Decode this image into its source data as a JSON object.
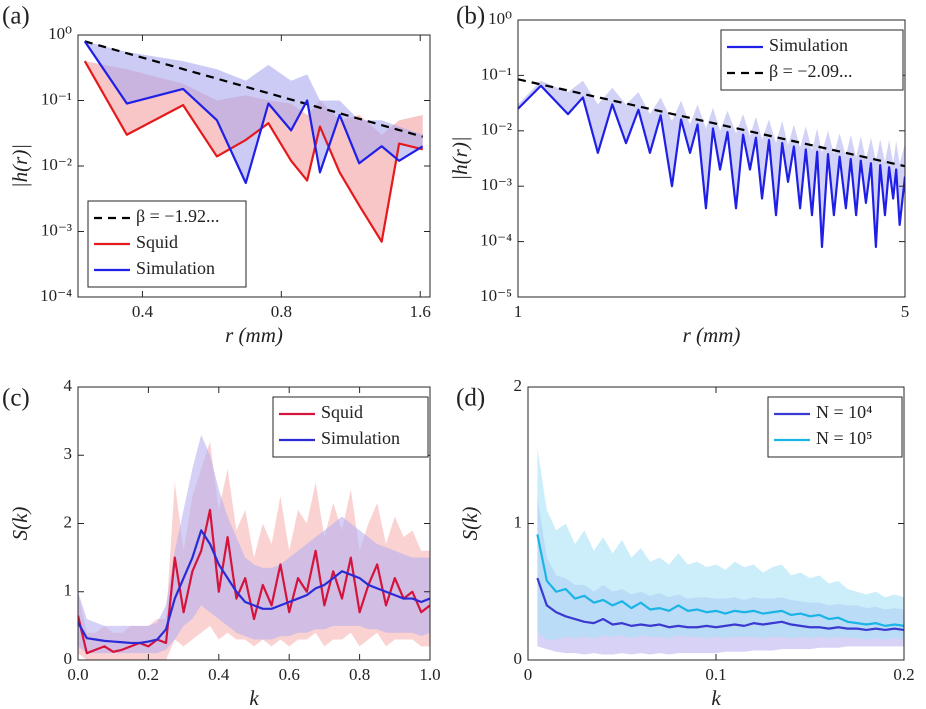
{
  "chart_data": [
    {
      "type": "line",
      "panel_label": "(a)",
      "x_label": "r (mm)",
      "y_label": "|h(r)|",
      "xlog": true,
      "ylog": true,
      "legend": "lower left",
      "xlim": [
        0.29,
        1.68
      ],
      "xticks": [
        0.4,
        0.8,
        1.6
      ],
      "ylim": [
        0.0001,
        1
      ],
      "yticks": [
        {
          "value": 0.0001,
          "label": "10⁻⁴"
        },
        {
          "value": 0.001,
          "label": "10⁻³"
        },
        {
          "value": 0.01,
          "label": "10⁻²"
        },
        {
          "value": 0.1,
          "label": "10⁻¹"
        },
        {
          "value": 1,
          "label": "10⁰"
        }
      ],
      "x": [
        0.3,
        0.37,
        0.49,
        0.58,
        0.67,
        0.75,
        0.84,
        0.91,
        0.97,
        1.07,
        1.18,
        1.32,
        1.44,
        1.62
      ],
      "series": [
        {
          "name": "β = −1.92...",
          "color": "#000000",
          "line_style": "dashed",
          "x": [
            0.3,
            1.62
          ],
          "values": [
            0.8,
            0.028
          ]
        },
        {
          "name": "Squid",
          "color": "#e41a1c",
          "band_color": "#f4a0a0",
          "values": [
            0.4,
            0.03,
            0.085,
            0.014,
            0.025,
            0.045,
            0.012,
            0.006,
            0.04,
            0.008,
            0.0025,
            0.0007,
            0.022,
            0.018
          ],
          "band_high": [
            0.4,
            0.3,
            0.18,
            0.1,
            0.12,
            0.1,
            0.09,
            0.06,
            0.1,
            0.05,
            0.06,
            0.03,
            0.05,
            0.06
          ]
        },
        {
          "name": "Simulation",
          "color": "#1f1fe6",
          "band_color": "#a8a8f0",
          "values": [
            0.8,
            0.09,
            0.15,
            0.05,
            0.0055,
            0.09,
            0.035,
            0.1,
            0.008,
            0.06,
            0.011,
            0.02,
            0.012,
            0.02
          ],
          "band_high": [
            0.8,
            0.55,
            0.4,
            0.3,
            0.2,
            0.35,
            0.2,
            0.25,
            0.1,
            0.1,
            0.05,
            0.05,
            0.04,
            0.03
          ]
        }
      ]
    },
    {
      "type": "line",
      "panel_label": "(b)",
      "x_label": "r (mm)",
      "y_label": "|h(r)|",
      "xlog": true,
      "ylog": true,
      "legend": "upper right",
      "xlim": [
        1,
        5
      ],
      "xticks": [
        1,
        5
      ],
      "ylim": [
        1e-05,
        1
      ],
      "yticks": [
        {
          "value": 1e-05,
          "label": "10⁻⁵"
        },
        {
          "value": 0.0001,
          "label": "10⁻⁴"
        },
        {
          "value": 0.001,
          "label": "10⁻³"
        },
        {
          "value": 0.01,
          "label": "10⁻²"
        },
        {
          "value": 0.1,
          "label": "10⁻¹"
        },
        {
          "value": 1,
          "label": "10⁰"
        }
      ],
      "x": [
        1,
        1.1,
        1.231,
        1.31,
        1.394,
        1.48,
        1.567,
        1.65,
        1.731,
        1.81,
        1.897,
        1.97,
        2.045,
        2.11,
        2.185,
        2.25,
        2.317,
        2.39,
        2.476,
        2.55,
        2.624,
        2.69,
        2.759,
        2.84,
        2.924,
        3.0,
        3.074,
        3.15,
        3.232,
        3.31,
        3.396,
        3.47,
        3.54,
        3.63,
        3.72,
        3.81,
        3.91,
        3.99,
        4.08,
        4.16,
        4.25,
        4.34,
        4.43,
        4.51,
        4.6,
        4.68,
        4.76,
        4.82,
        4.89,
        5
      ],
      "series": [
        {
          "name": "Simulation",
          "color": "#1f1fe6",
          "band_color": "#b4b4f2",
          "values": [
            0.025,
            0.065,
            0.02,
            0.04,
            0.004,
            0.03,
            0.006,
            0.024,
            0.004,
            0.019,
            0.001,
            0.016,
            0.004,
            0.013,
            0.0004,
            0.011,
            0.002,
            0.0095,
            0.0004,
            0.0085,
            0.002,
            0.0075,
            0.0006,
            0.0068,
            0.0003,
            0.006,
            0.0012,
            0.0052,
            0.0004,
            0.0046,
            0.0003,
            0.0042,
            8e-05,
            0.0038,
            0.0003,
            0.0034,
            0.0004,
            0.0031,
            0.0003,
            0.0029,
            0.0005,
            0.0026,
            8e-05,
            0.0024,
            0.0003,
            0.0022,
            0.0006,
            0.002,
            0.0002,
            0.0015
          ],
          "band_high": [
            0.03,
            0.08,
            0.05,
            0.08,
            0.03,
            0.06,
            0.03,
            0.05,
            0.02,
            0.04,
            0.015,
            0.035,
            0.013,
            0.03,
            0.011,
            0.026,
            0.01,
            0.023,
            0.009,
            0.02,
            0.008,
            0.018,
            0.007,
            0.016,
            0.006,
            0.015,
            0.0055,
            0.013,
            0.005,
            0.012,
            0.0045,
            0.011,
            0.004,
            0.01,
            0.0038,
            0.009,
            0.0035,
            0.0085,
            0.0033,
            0.008,
            0.003,
            0.0075,
            0.0028,
            0.007,
            0.0027,
            0.0068,
            0.0026,
            0.0065,
            0.0025,
            0.006
          ]
        },
        {
          "name": "β = −2.09...",
          "color": "#000000",
          "line_style": "dashed",
          "x": [
            1,
            5
          ],
          "values": [
            0.085,
            0.0023
          ]
        }
      ]
    },
    {
      "type": "line",
      "panel_label": "(c)",
      "x_label": "k",
      "y_label": "S(k)",
      "legend": "upper right",
      "xlim": [
        0,
        1
      ],
      "xticks": [
        {
          "value": 0,
          "label": "0.0"
        },
        0.2,
        0.4,
        0.6,
        0.8,
        {
          "value": 1,
          "label": "1.0"
        }
      ],
      "ylim": [
        0,
        4
      ],
      "yticks": [
        0,
        1,
        2,
        3,
        4
      ],
      "x": [
        0,
        0.025,
        0.05,
        0.075,
        0.1,
        0.125,
        0.15,
        0.175,
        0.2,
        0.225,
        0.25,
        0.275,
        0.3,
        0.325,
        0.35,
        0.375,
        0.4,
        0.425,
        0.45,
        0.475,
        0.5,
        0.525,
        0.55,
        0.575,
        0.6,
        0.625,
        0.65,
        0.675,
        0.7,
        0.725,
        0.75,
        0.775,
        0.8,
        0.825,
        0.85,
        0.875,
        0.9,
        0.925,
        0.95,
        0.975,
        1
      ],
      "series": [
        {
          "name": "Squid",
          "color": "#d4143c",
          "band_color": "#f6b4b4",
          "values": [
            0.65,
            0.1,
            0.15,
            0.2,
            0.12,
            0.15,
            0.2,
            0.25,
            0.2,
            0.3,
            0.25,
            1.5,
            0.7,
            1.3,
            1.6,
            2.2,
            1.0,
            1.8,
            0.9,
            1.2,
            0.6,
            1.1,
            0.8,
            1.4,
            0.7,
            1.2,
            1.0,
            1.6,
            0.8,
            1.3,
            0.9,
            1.5,
            0.7,
            1.1,
            1.4,
            0.8,
            1.2,
            0.9,
            1.0,
            0.7,
            0.8
          ],
          "band_low": [
            0.1,
            0,
            0,
            0,
            0,
            0,
            0,
            0,
            0,
            0,
            0,
            0.3,
            0.2,
            0.3,
            0.4,
            0.5,
            0.3,
            0.4,
            0.3,
            0.3,
            0.2,
            0.3,
            0.2,
            0.3,
            0.2,
            0.3,
            0.3,
            0.4,
            0.2,
            0.3,
            0.3,
            0.4,
            0.2,
            0.3,
            0.4,
            0.2,
            0.3,
            0.3,
            0.3,
            0.2,
            0.2
          ],
          "band_high": [
            1.0,
            0.4,
            0.4,
            0.5,
            0.4,
            0.4,
            0.5,
            0.5,
            0.5,
            0.6,
            0.6,
            2.6,
            1.6,
            2.4,
            2.8,
            3.2,
            2.2,
            2.8,
            1.9,
            2.2,
            1.5,
            2.0,
            1.7,
            2.4,
            1.6,
            2.2,
            2.0,
            2.6,
            1.8,
            2.3,
            1.9,
            2.5,
            1.6,
            2.0,
            2.3,
            1.7,
            2.1,
            1.8,
            1.9,
            1.6,
            1.6
          ]
        },
        {
          "name": "Simulation",
          "color": "#2b2bd6",
          "band_color": "#b8b0f0",
          "values": [
            0.55,
            0.32,
            0.3,
            0.28,
            0.27,
            0.26,
            0.25,
            0.25,
            0.27,
            0.3,
            0.45,
            0.9,
            1.2,
            1.5,
            1.9,
            1.7,
            1.4,
            1.2,
            1.0,
            0.85,
            0.8,
            0.75,
            0.75,
            0.8,
            0.85,
            0.9,
            0.95,
            1.05,
            1.1,
            1.2,
            1.3,
            1.25,
            1.2,
            1.1,
            1.05,
            1.0,
            0.95,
            0.9,
            0.9,
            0.85,
            0.9
          ],
          "band_low": [
            0.2,
            0.1,
            0.1,
            0.1,
            0.1,
            0.1,
            0.1,
            0.1,
            0.1,
            0.1,
            0.15,
            0.3,
            0.5,
            0.6,
            0.8,
            0.7,
            0.6,
            0.5,
            0.4,
            0.35,
            0.3,
            0.3,
            0.3,
            0.35,
            0.35,
            0.4,
            0.4,
            0.45,
            0.45,
            0.5,
            0.5,
            0.5,
            0.5,
            0.45,
            0.45,
            0.4,
            0.4,
            0.4,
            0.4,
            0.35,
            0.4
          ],
          "band_high": [
            1.0,
            0.6,
            0.55,
            0.5,
            0.5,
            0.5,
            0.5,
            0.5,
            0.5,
            0.55,
            0.8,
            1.6,
            2.2,
            2.8,
            3.3,
            3.0,
            2.5,
            2.1,
            1.8,
            1.5,
            1.4,
            1.35,
            1.35,
            1.4,
            1.5,
            1.6,
            1.7,
            1.8,
            1.9,
            2.0,
            2.1,
            2.0,
            1.9,
            1.8,
            1.7,
            1.65,
            1.6,
            1.55,
            1.5,
            1.5,
            1.5
          ]
        }
      ]
    },
    {
      "type": "line",
      "panel_label": "(d)",
      "x_label": "k",
      "y_label": "S(k)",
      "legend": "upper right",
      "xlim": [
        0,
        0.2
      ],
      "xticks": [
        0,
        0.1,
        0.2
      ],
      "ylim": [
        0,
        2
      ],
      "yticks": [
        0,
        1,
        2
      ],
      "x": [
        0.005,
        0.01,
        0.015,
        0.02,
        0.025,
        0.03,
        0.035,
        0.04,
        0.045,
        0.05,
        0.055,
        0.06,
        0.065,
        0.07,
        0.075,
        0.08,
        0.085,
        0.09,
        0.095,
        0.1,
        0.105,
        0.11,
        0.115,
        0.12,
        0.125,
        0.13,
        0.135,
        0.14,
        0.145,
        0.15,
        0.155,
        0.16,
        0.165,
        0.17,
        0.175,
        0.18,
        0.185,
        0.19,
        0.195,
        0.2
      ],
      "series": [
        {
          "name": "N = 10⁴",
          "color": "#3a3ad0",
          "band_color": "#bcb4f0",
          "values": [
            0.6,
            0.4,
            0.35,
            0.32,
            0.3,
            0.28,
            0.27,
            0.3,
            0.26,
            0.27,
            0.25,
            0.26,
            0.25,
            0.26,
            0.24,
            0.25,
            0.24,
            0.24,
            0.25,
            0.24,
            0.25,
            0.26,
            0.25,
            0.27,
            0.26,
            0.27,
            0.28,
            0.26,
            0.25,
            0.24,
            0.24,
            0.23,
            0.24,
            0.23,
            0.23,
            0.22,
            0.23,
            0.22,
            0.23,
            0.22
          ],
          "band_low": [
            0.1,
            0.08,
            0.06,
            0.05,
            0.05,
            0.04,
            0.05,
            0.04,
            0.04,
            0.05,
            0.04,
            0.05,
            0.04,
            0.05,
            0.04,
            0.05,
            0.05,
            0.05,
            0.05,
            0.05,
            0.06,
            0.06,
            0.06,
            0.07,
            0.07,
            0.07,
            0.08,
            0.08,
            0.08,
            0.08,
            0.09,
            0.09,
            0.09,
            0.1,
            0.1,
            0.1,
            0.1,
            0.1,
            0.1,
            0.1
          ],
          "band_high": [
            1.2,
            0.75,
            0.62,
            0.6,
            0.55,
            0.55,
            0.5,
            0.55,
            0.5,
            0.52,
            0.48,
            0.5,
            0.47,
            0.49,
            0.46,
            0.48,
            0.45,
            0.46,
            0.46,
            0.45,
            0.45,
            0.46,
            0.44,
            0.46,
            0.45,
            0.45,
            0.46,
            0.44,
            0.43,
            0.42,
            0.42,
            0.4,
            0.41,
            0.4,
            0.4,
            0.38,
            0.39,
            0.37,
            0.38,
            0.37
          ]
        },
        {
          "name": "N = 10⁵",
          "color": "#1ab4e6",
          "band_color": "#a8e2f6",
          "values": [
            0.92,
            0.58,
            0.5,
            0.52,
            0.45,
            0.47,
            0.42,
            0.44,
            0.4,
            0.43,
            0.38,
            0.42,
            0.37,
            0.38,
            0.36,
            0.4,
            0.36,
            0.37,
            0.35,
            0.36,
            0.34,
            0.36,
            0.35,
            0.36,
            0.34,
            0.35,
            0.36,
            0.33,
            0.34,
            0.32,
            0.33,
            0.3,
            0.31,
            0.28,
            0.27,
            0.26,
            0.27,
            0.25,
            0.26,
            0.25
          ],
          "band_low": [
            0.2,
            0.15,
            0.15,
            0.17,
            0.16,
            0.17,
            0.16,
            0.18,
            0.17,
            0.18,
            0.16,
            0.18,
            0.17,
            0.17,
            0.16,
            0.18,
            0.17,
            0.17,
            0.16,
            0.17,
            0.16,
            0.17,
            0.17,
            0.17,
            0.16,
            0.17,
            0.17,
            0.16,
            0.17,
            0.16,
            0.17,
            0.16,
            0.17,
            0.16,
            0.16,
            0.15,
            0.16,
            0.15,
            0.16,
            0.15
          ],
          "band_high": [
            1.55,
            1.1,
            0.95,
            1.0,
            0.85,
            0.95,
            0.8,
            0.9,
            0.78,
            0.88,
            0.75,
            0.82,
            0.72,
            0.75,
            0.7,
            0.78,
            0.7,
            0.72,
            0.68,
            0.7,
            0.66,
            0.72,
            0.68,
            0.7,
            0.64,
            0.68,
            0.7,
            0.62,
            0.64,
            0.6,
            0.62,
            0.56,
            0.58,
            0.52,
            0.5,
            0.48,
            0.5,
            0.46,
            0.48,
            0.46
          ]
        }
      ]
    }
  ]
}
